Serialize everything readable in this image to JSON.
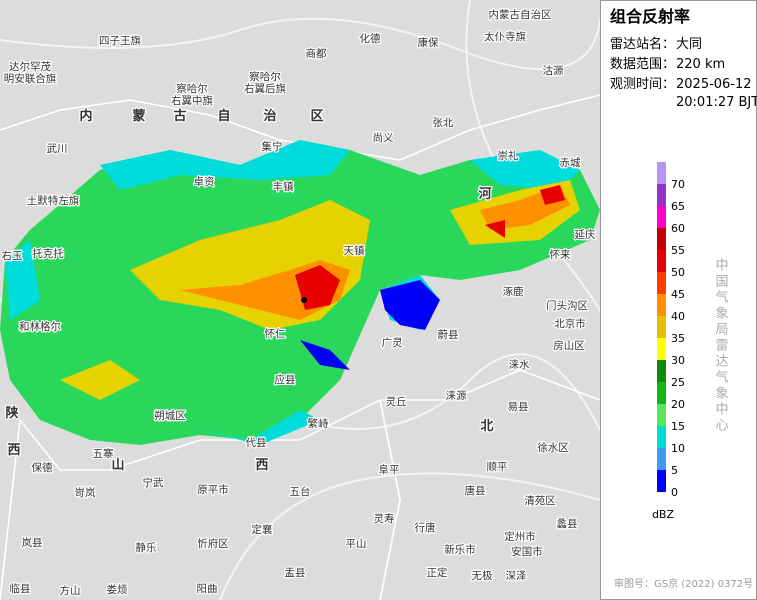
{
  "panel": {
    "title": "组合反射率",
    "station_label": "雷达站名：",
    "station": "大同",
    "range_label": "数据范围：",
    "range": "220 km",
    "time_label": "观测时间：",
    "date": "2025-06-12",
    "time": "20:01:27 BJT",
    "credit": "中国气象局雷达气象中心",
    "approval": "审图号：GS京 (2022) 0372号"
  },
  "legend": {
    "unit": "dBZ",
    "ticks": [
      0,
      5,
      10,
      15,
      20,
      25,
      30,
      35,
      40,
      45,
      50,
      55,
      60,
      65,
      70
    ],
    "colors": [
      "#0000f6",
      "#3c9cf0",
      "#00dcdc",
      "#5ae65a",
      "#14b414",
      "#0a8c0a",
      "#ffff00",
      "#e6c000",
      "#ff9000",
      "#ff3c00",
      "#e60000",
      "#c00000",
      "#ff00c8",
      "#9632c8",
      "#b496f0"
    ]
  },
  "map_labels": [
    "内蒙古自治区",
    "四子王旗",
    "化德",
    "康保",
    "太仆寺旗",
    "商都",
    "达尔罕茂",
    "明安联合旗",
    "察哈尔",
    "右翼中旗",
    "察哈尔",
    "右翼后旗",
    "沽源",
    "尚义",
    "张北",
    "武川",
    "崇礼",
    "赤城",
    "卓资",
    "集宁",
    "丰镇",
    "天镇",
    "土默特左旗",
    "托克托",
    "延庆",
    "北京市",
    "蔚县",
    "涿鹿",
    "门头沟区",
    "房山区",
    "广灵",
    "灵丘",
    "涞源",
    "涞水",
    "易县",
    "顺平",
    "唐县",
    "阜平",
    "五台",
    "繁峙",
    "代县",
    "朔城区",
    "应县",
    "怀仁",
    "和林格尔",
    "右玉",
    "保德",
    "五寨",
    "宁武",
    "原平市",
    "岢岚",
    "静乐",
    "忻府区",
    "定襄",
    "盂县",
    "平山",
    "灵寿",
    "行唐",
    "新乐市",
    "定州市",
    "安国市",
    "蠡县",
    "清苑区",
    "徐水区",
    "深泽",
    "无极",
    "正定",
    "阳曲",
    "方山",
    "娄烦",
    "临县",
    "岚县",
    "陕",
    "西",
    "山",
    "西",
    "北",
    "内",
    "蒙",
    "古",
    "自",
    "治",
    "区",
    "河",
    "怀来"
  ]
}
